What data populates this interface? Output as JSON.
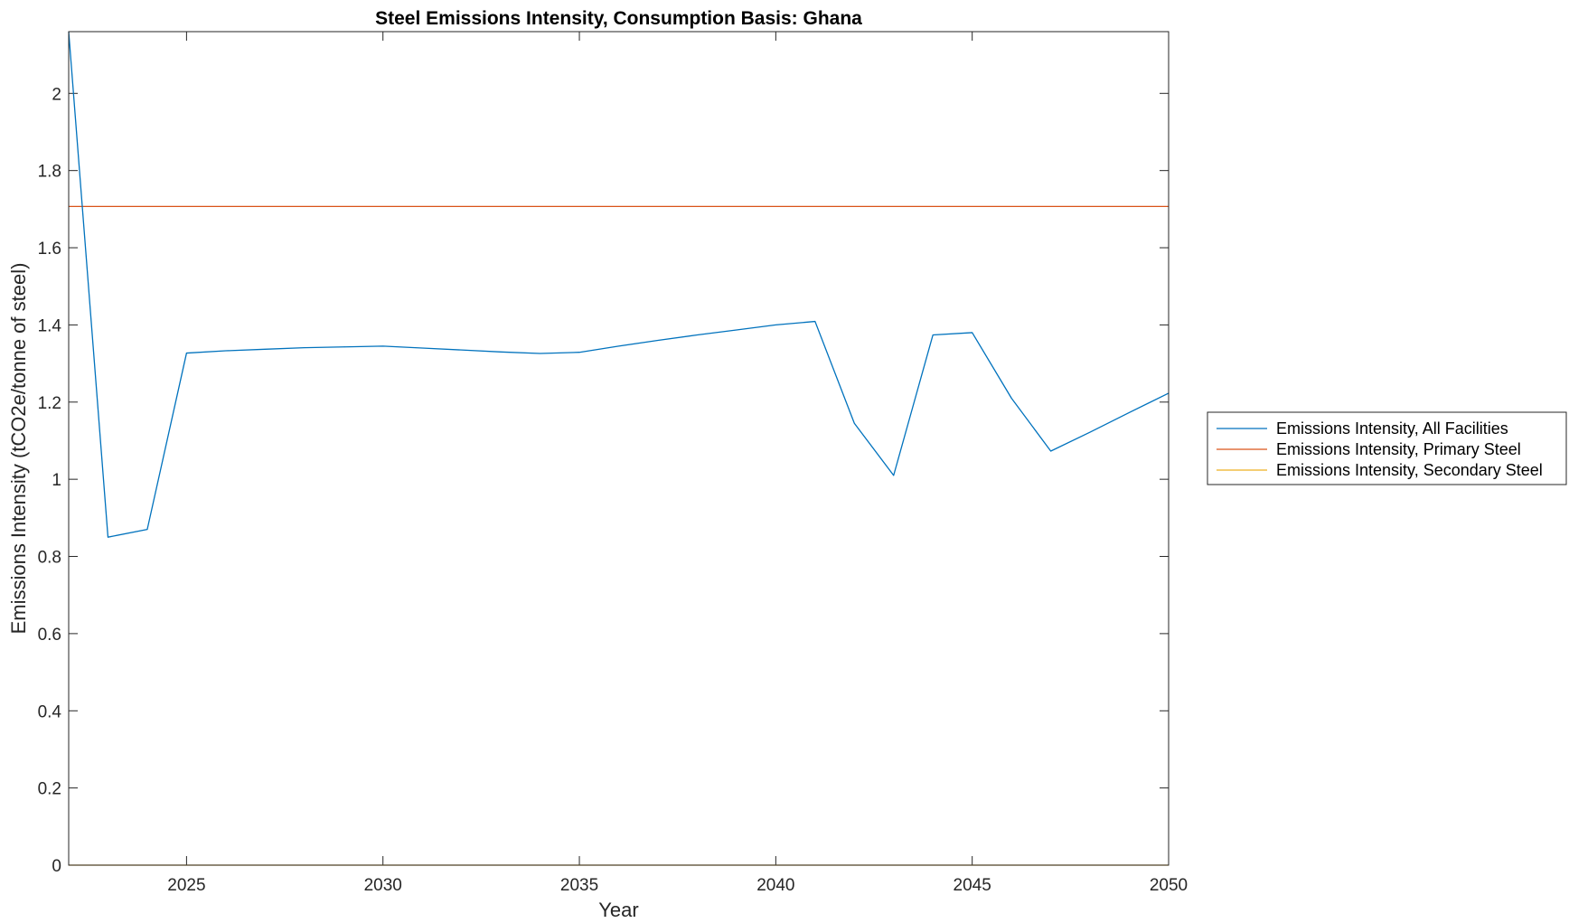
{
  "chart_data": {
    "type": "line",
    "title": "Steel Emissions Intensity, Consumption Basis: Ghana",
    "xlabel": "Year",
    "ylabel": "Emissions Intensity (tCO2e/tonne of steel)",
    "xlim": [
      2022,
      2050
    ],
    "ylim": [
      0,
      2.16
    ],
    "xticks": [
      2025,
      2030,
      2035,
      2040,
      2045,
      2050
    ],
    "yticks": [
      0,
      0.2,
      0.4,
      0.6,
      0.8,
      1,
      1.2,
      1.4,
      1.6,
      1.8,
      2
    ],
    "ytick_labels": [
      "0",
      "0.2",
      "0.4",
      "0.6",
      "0.8",
      "1",
      "1.2",
      "1.4",
      "1.6",
      "1.8",
      "2"
    ],
    "grid": false,
    "legend_position": "outside-right",
    "x": [
      2022,
      2023,
      2024,
      2025,
      2026,
      2027,
      2028,
      2029,
      2030,
      2031,
      2032,
      2033,
      2034,
      2035,
      2036,
      2037,
      2038,
      2039,
      2040,
      2041,
      2042,
      2043,
      2044,
      2045,
      2046,
      2047,
      2048,
      2049,
      2050
    ],
    "series": [
      {
        "name": "Emissions Intensity, All Facilities",
        "color": "#0072BD",
        "values": [
          2.16,
          0.85,
          0.87,
          1.327,
          1.333,
          1.337,
          1.341,
          1.343,
          1.345,
          1.34,
          1.335,
          1.33,
          1.326,
          1.329,
          1.345,
          1.36,
          1.374,
          1.387,
          1.4,
          1.409,
          1.145,
          1.01,
          1.374,
          1.38,
          1.21,
          1.073,
          1.122,
          1.173,
          1.223
        ]
      },
      {
        "name": "Emissions Intensity, Primary Steel",
        "color": "#D95319",
        "values": [
          1.707,
          1.707,
          1.707,
          1.707,
          1.707,
          1.707,
          1.707,
          1.707,
          1.707,
          1.707,
          1.707,
          1.707,
          1.707,
          1.707,
          1.707,
          1.707,
          1.707,
          1.707,
          1.707,
          1.707,
          1.707,
          1.707,
          1.707,
          1.707,
          1.707,
          1.707,
          1.707,
          1.707,
          1.707
        ]
      },
      {
        "name": "Emissions Intensity, Secondary Steel",
        "color": "#EDB120",
        "values": [
          0,
          0,
          0,
          0,
          0,
          0,
          0,
          0,
          0,
          0,
          0,
          0,
          0,
          0,
          0,
          0,
          0,
          0,
          0,
          0,
          0,
          0,
          0,
          0,
          0,
          0,
          0,
          0,
          0
        ]
      }
    ]
  }
}
